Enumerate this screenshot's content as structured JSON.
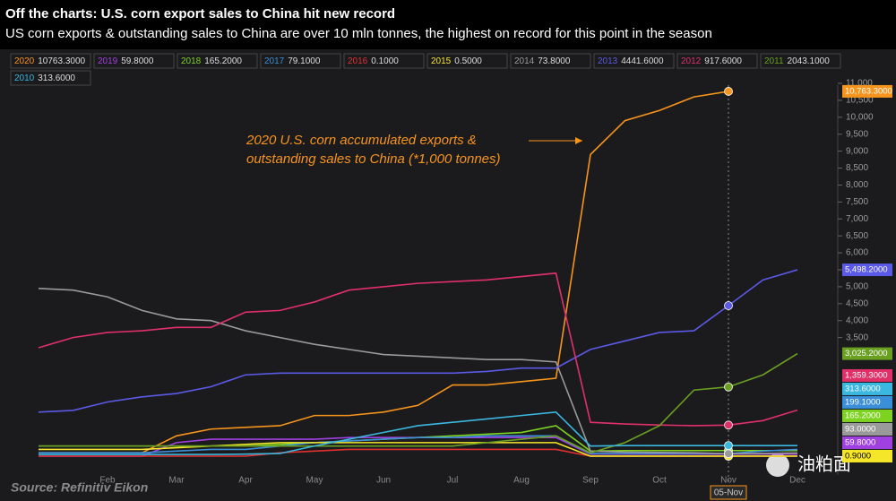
{
  "chart_data": {
    "type": "line",
    "title": "Off the charts: U.S. corn export sales to China hit new record",
    "subtitle": "US corn exports & outstanding sales to China are over 10 mln tonnes, the highest on record for this point in the season",
    "annotation": [
      "2020 U.S. corn accumulated exports &",
      "outstanding sales to China (*1,000 tonnes)"
    ],
    "source": "Source: Refinitiv Eikon",
    "watermark": "油粕面",
    "cursor_label": "05-Nov",
    "categories": [
      null,
      null,
      "Feb",
      null,
      "Mar",
      null,
      "Apr",
      null,
      "May",
      null,
      "Jun",
      null,
      "Jul",
      null,
      "Aug",
      null,
      "Sep",
      null,
      "Oct",
      null,
      "Nov",
      null,
      "Dec"
    ],
    "ylim": [
      0,
      11000
    ],
    "yticks": [
      {
        "value": 3500,
        "label": "3,500"
      },
      {
        "value": 4000,
        "label": "4,000"
      },
      {
        "value": 4500,
        "label": "4,500"
      },
      {
        "value": 5000,
        "label": "5,000"
      },
      {
        "value": 5500,
        "label": "5,500"
      },
      {
        "value": 6000,
        "label": "6,000"
      },
      {
        "value": 6500,
        "label": "6,500"
      },
      {
        "value": 7000,
        "label": "7,000"
      },
      {
        "value": 7500,
        "label": "7,500"
      },
      {
        "value": 8000,
        "label": "8,000"
      },
      {
        "value": 8500,
        "label": "8,500"
      },
      {
        "value": 9000,
        "label": "9,000"
      },
      {
        "value": 9500,
        "label": "9,500"
      },
      {
        "value": 10000,
        "label": "10,000"
      },
      {
        "value": 10500,
        "label": "10,500"
      },
      {
        "value": 11000,
        "label": "11,000"
      }
    ],
    "grid": false,
    "series": [
      {
        "name": "2020",
        "color": "#f7941d",
        "legend_value": "10763.3000",
        "end_label": "10,763.3000",
        "values": [
          100,
          100,
          100,
          100,
          600,
          800,
          850,
          900,
          1200,
          1200,
          1300,
          1500,
          2100,
          2100,
          2200,
          2300,
          8900,
          9900,
          10200,
          10600,
          10763.3,
          null,
          null
        ]
      },
      {
        "name": "2019",
        "color": "#a040e0",
        "legend_value": "59.8000",
        "end_label": "59.8000",
        "values": [
          0,
          0,
          0,
          0,
          400,
          500,
          500,
          500,
          500,
          550,
          550,
          550,
          550,
          550,
          550,
          550,
          60,
          59.8,
          59.8,
          59.8,
          59.8,
          59.8,
          59.8
        ]
      },
      {
        "name": "2018",
        "color": "#7ed321",
        "legend_value": "165.2000",
        "end_label": "165.2000",
        "values": [
          300,
          300,
          300,
          300,
          300,
          300,
          300,
          350,
          400,
          450,
          500,
          550,
          600,
          650,
          700,
          900,
          150,
          165.2,
          165.2,
          165.2,
          165.2,
          165.2,
          165.2
        ]
      },
      {
        "name": "2017",
        "color": "#3a8fd8",
        "legend_value": "79.1000",
        "end_label": "199.1000",
        "values": [
          100,
          100,
          100,
          100,
          150,
          200,
          200,
          300,
          400,
          450,
          500,
          550,
          550,
          600,
          600,
          600,
          80,
          79.1,
          79.1,
          79.1,
          79.1,
          150,
          199.1
        ]
      },
      {
        "name": "2016",
        "color": "#e03030",
        "legend_value": "0.1000",
        "values": [
          0,
          0,
          0,
          0,
          0,
          0,
          0,
          100,
          150,
          200,
          200,
          200,
          200,
          200,
          200,
          200,
          0.1,
          0.1,
          0.1,
          0.1,
          0.1,
          0.1,
          0.1
        ]
      },
      {
        "name": "2015",
        "color": "#f5e62a",
        "legend_value": "0.5000",
        "end_label": "0.9000",
        "values": [
          200,
          200,
          200,
          200,
          250,
          300,
          350,
          400,
          400,
          400,
          400,
          400,
          400,
          400,
          400,
          400,
          0.5,
          0.5,
          0.5,
          0.5,
          0.5,
          0.7,
          0.9
        ]
      },
      {
        "name": "2014",
        "color": "#9a9a9a",
        "legend_value": "73.8000",
        "end_label": "93.0000",
        "values": [
          4950,
          4900,
          4700,
          4300,
          4050,
          4000,
          3700,
          3500,
          3300,
          3150,
          3000,
          2950,
          2900,
          2850,
          2850,
          2780,
          150,
          120,
          110,
          100,
          73.8,
          80,
          93
        ]
      },
      {
        "name": "2013",
        "color": "#5a5ae6",
        "legend_value": "4441.6000",
        "end_label": "5,498.2000",
        "values": [
          1300,
          1350,
          1600,
          1750,
          1850,
          2050,
          2400,
          2450,
          2450,
          2450,
          2450,
          2450,
          2450,
          2500,
          2600,
          2600,
          3150,
          3400,
          3650,
          3700,
          4441.6,
          5200,
          5498.2
        ]
      },
      {
        "name": "2012",
        "color": "#e0306a",
        "legend_value": "917.6000",
        "end_label": "1,359.3000",
        "values": [
          3200,
          3500,
          3650,
          3700,
          3800,
          3800,
          4250,
          4300,
          4550,
          4900,
          5000,
          5100,
          5150,
          5200,
          5300,
          5400,
          1000,
          950,
          920,
          900,
          917.6,
          1050,
          1359.3
        ]
      },
      {
        "name": "2011",
        "color": "#6aa022",
        "legend_value": "2043.1000",
        "end_label": "3,025.2000",
        "values": [
          300,
          300,
          300,
          300,
          300,
          300,
          300,
          300,
          300,
          300,
          300,
          300,
          300,
          400,
          500,
          600,
          100,
          400,
          900,
          1950,
          2043.1,
          2400,
          3025.2
        ]
      },
      {
        "name": "2010",
        "color": "#3ab8e0",
        "legend_value": "313.6000",
        "end_label": "313.6000",
        "values": [
          50,
          50,
          50,
          50,
          50,
          50,
          60,
          80,
          300,
          500,
          700,
          900,
          1000,
          1100,
          1200,
          1300,
          300,
          313.6,
          313.6,
          313.6,
          313.6,
          313.6,
          313.6
        ]
      }
    ]
  }
}
